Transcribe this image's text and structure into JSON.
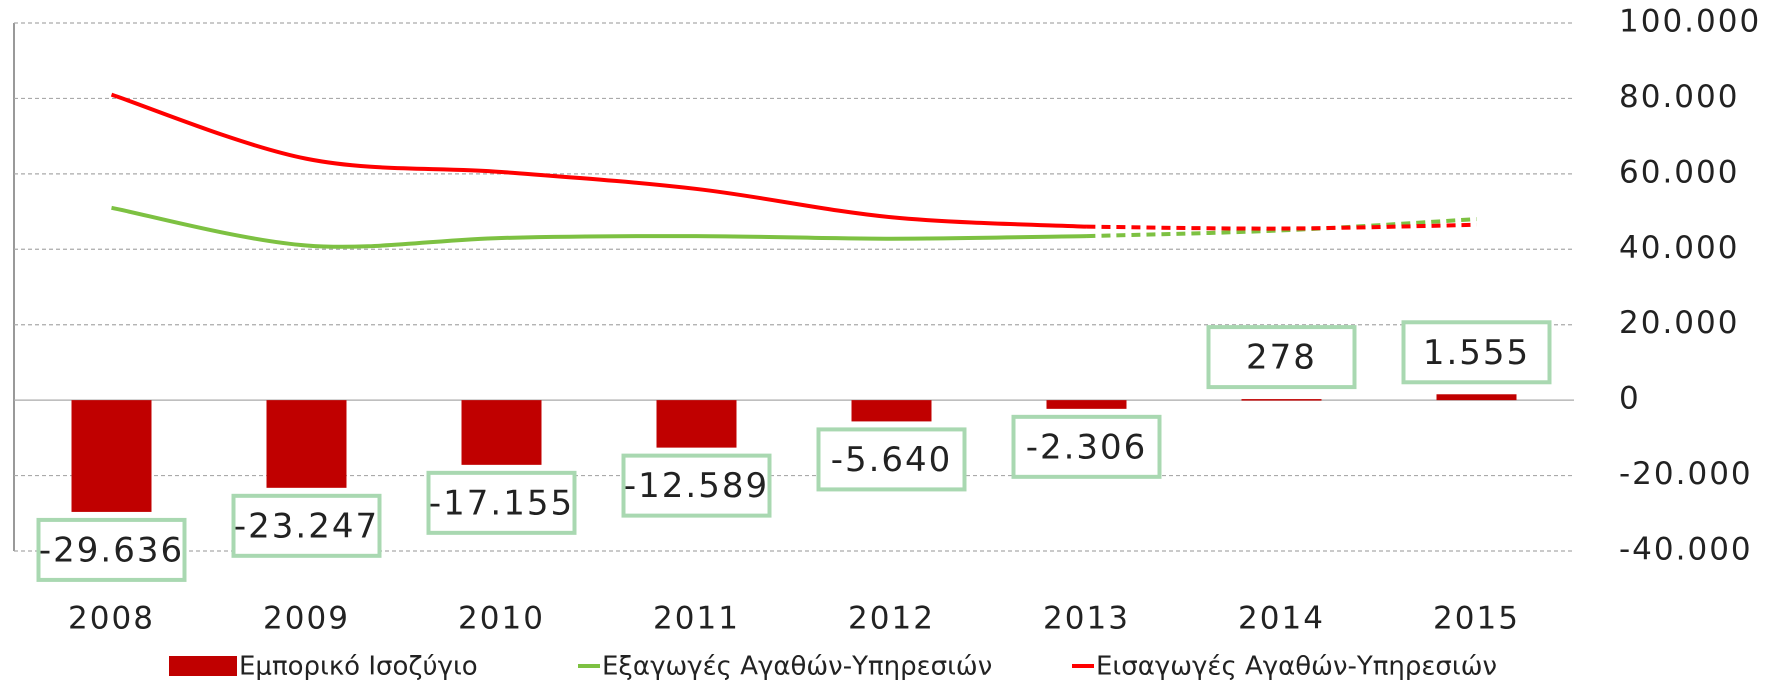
{
  "chart_data": {
    "type": "bar-line",
    "categories": [
      "2008",
      "2009",
      "2010",
      "2011",
      "2012",
      "2013",
      "2014",
      "2015"
    ],
    "series": [
      {
        "name": "Εμπορικό Ισοζύγιο",
        "type": "bar",
        "color": "#c00000",
        "values": [
          -29636,
          -23247,
          -17155,
          -12589,
          -5640,
          -2306,
          278,
          1555
        ],
        "value_labels": [
          "-29.636",
          "-23.247",
          "-17.155",
          "-12.589",
          "-5.640",
          "-2.306",
          "278",
          "1.555"
        ]
      },
      {
        "name": "Εξαγωγές Αγαθών-Υπηρεσιών",
        "type": "line",
        "color": "#7dc142",
        "values": [
          51000,
          41000,
          43000,
          43500,
          42800,
          43500,
          45000,
          48000
        ]
      },
      {
        "name": "Εισαγωγές Αγαθών-Υπηρεσιών",
        "type": "line",
        "color": "#ff0000",
        "values": [
          81000,
          64000,
          60500,
          56000,
          48500,
          46000,
          45500,
          46500
        ]
      }
    ],
    "dashed_from": "2013",
    "ylim": [
      -40000,
      100000
    ],
    "yticks": [
      {
        "value": -40000,
        "label": "-40.000"
      },
      {
        "value": -20000,
        "label": "-20.000"
      },
      0,
      {
        "value": 20000,
        "label": "20.000"
      },
      {
        "value": 40000,
        "label": "40.000"
      },
      {
        "value": 60000,
        "label": "60.000"
      },
      {
        "value": 80000,
        "label": "80.000"
      },
      {
        "value": 100000,
        "label": "100.000"
      }
    ],
    "grid": true,
    "legend": "bottom"
  }
}
